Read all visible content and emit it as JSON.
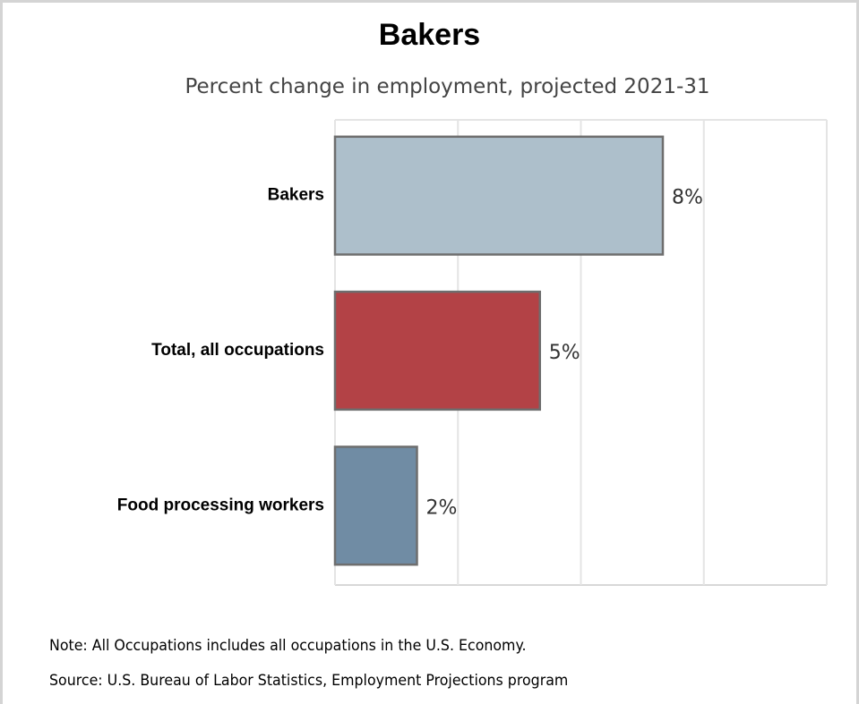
{
  "chart_data": {
    "type": "bar",
    "orientation": "horizontal",
    "title": "Bakers",
    "subtitle": "Percent change in employment, projected 2021-31",
    "categories": [
      "Bakers",
      "Total, all occupations",
      "Food processing workers"
    ],
    "values": [
      8,
      5,
      2
    ],
    "value_labels": [
      "8%",
      "5%",
      "2%"
    ],
    "bar_colors": [
      "#adbfcb",
      "#b34246",
      "#708ca4"
    ],
    "xlim": [
      0,
      12
    ],
    "grid": true,
    "legend": "none"
  },
  "notes": {
    "note": "Note: All Occupations includes all occupations in the U.S. Economy.",
    "source": "Source: U.S. Bureau of Labor Statistics, Employment Projections program"
  }
}
